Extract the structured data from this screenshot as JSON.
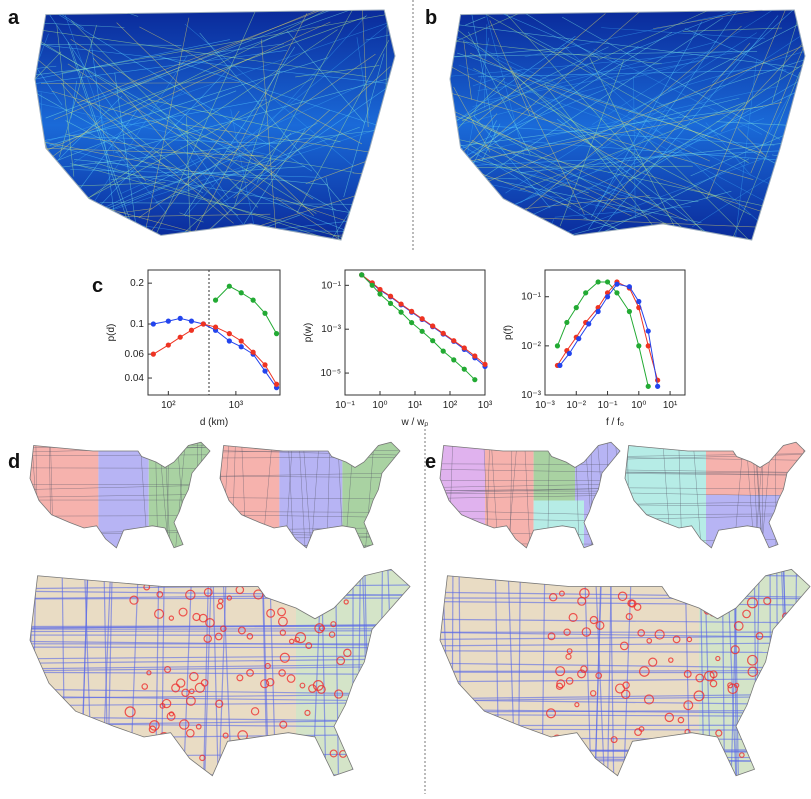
{
  "panels": [
    "a",
    "b",
    "c",
    "d",
    "e"
  ],
  "chart_data": [
    {
      "type": "line",
      "xlabel": "d (km)",
      "ylabel": "p(d)",
      "xscale": "log",
      "yscale": "log",
      "xlim": [
        50,
        4500
      ],
      "ylim": [
        0.03,
        0.25
      ],
      "xticks": [
        {
          "value": 100,
          "label": "10²"
        },
        {
          "value": 1000,
          "label": "10³"
        }
      ],
      "yticks": [
        0.04,
        0.06,
        0.1,
        0.2
      ],
      "reference_x": 400,
      "series": [
        {
          "color": "#2244ee",
          "x": [
            60,
            100,
            150,
            220,
            330,
            500,
            800,
            1200,
            1800,
            2700,
            4000
          ],
          "values": [
            0.1,
            0.105,
            0.11,
            0.105,
            0.1,
            0.09,
            0.075,
            0.068,
            0.06,
            0.045,
            0.034
          ]
        },
        {
          "color": "#ee3322",
          "x": [
            60,
            100,
            150,
            220,
            330,
            500,
            800,
            1200,
            1800,
            2700,
            4000
          ],
          "values": [
            0.06,
            0.07,
            0.08,
            0.09,
            0.1,
            0.095,
            0.085,
            0.075,
            0.062,
            0.05,
            0.036
          ]
        },
        {
          "color": "#22aa33",
          "x": [
            500,
            800,
            1200,
            1800,
            2700,
            4000
          ],
          "values": [
            0.15,
            0.19,
            0.17,
            0.15,
            0.12,
            0.085
          ]
        }
      ]
    },
    {
      "type": "line",
      "xlabel": "w / w₀",
      "ylabel": "p(w)",
      "xscale": "log",
      "yscale": "log",
      "xlim": [
        0.1,
        1000
      ],
      "ylim": [
        1e-06,
        0.5
      ],
      "xticks": [
        {
          "value": 0.1,
          "label": "10⁻¹"
        },
        {
          "value": 1,
          "label": "10⁰"
        },
        {
          "value": 10,
          "label": "10¹"
        },
        {
          "value": 100,
          "label": "10²"
        },
        {
          "value": 1000,
          "label": "10³"
        }
      ],
      "yticks": [
        {
          "value": 0.1,
          "label": "10⁻¹"
        },
        {
          "value": 0.001,
          "label": "10⁻³"
        },
        {
          "value": 1e-05,
          "label": "10⁻⁵"
        }
      ],
      "series": [
        {
          "color": "#2244ee",
          "x": [
            0.3,
            0.6,
            1,
            2,
            4,
            8,
            16,
            32,
            64,
            128,
            256,
            512,
            1000
          ],
          "values": [
            0.3,
            0.12,
            0.06,
            0.03,
            0.013,
            0.006,
            0.0028,
            0.0013,
            0.0006,
            0.00028,
            0.00012,
            5e-05,
            2e-05
          ]
        },
        {
          "color": "#ee3322",
          "x": [
            0.3,
            0.6,
            1,
            2,
            4,
            8,
            16,
            32,
            64,
            128,
            256,
            512,
            1000
          ],
          "values": [
            0.3,
            0.13,
            0.065,
            0.032,
            0.014,
            0.0065,
            0.003,
            0.0014,
            0.00065,
            0.0003,
            0.00014,
            6e-05,
            2.5e-05
          ]
        },
        {
          "color": "#22aa33",
          "x": [
            0.3,
            0.6,
            1,
            2,
            4,
            8,
            16,
            32,
            64,
            128,
            256,
            512
          ],
          "values": [
            0.3,
            0.1,
            0.04,
            0.015,
            0.006,
            0.002,
            0.0008,
            0.0003,
            0.0001,
            4e-05,
            1.5e-05,
            5e-06
          ]
        }
      ]
    },
    {
      "type": "line",
      "xlabel": "f / f₀",
      "ylabel": "p(f)",
      "xscale": "log",
      "yscale": "log",
      "xlim": [
        0.001,
        30
      ],
      "ylim": [
        0.001,
        0.35
      ],
      "xticks": [
        {
          "value": 0.001,
          "label": "10⁻³"
        },
        {
          "value": 0.01,
          "label": "10⁻²"
        },
        {
          "value": 0.1,
          "label": "10⁻¹"
        },
        {
          "value": 1,
          "label": "10⁰"
        },
        {
          "value": 10,
          "label": "10¹"
        }
      ],
      "yticks": [
        {
          "value": 0.001,
          "label": "10⁻³"
        },
        {
          "value": 0.01,
          "label": "10⁻²"
        },
        {
          "value": 0.1,
          "label": "10⁻¹"
        }
      ],
      "series": [
        {
          "color": "#22aa33",
          "x": [
            0.0025,
            0.005,
            0.01,
            0.02,
            0.05,
            0.1,
            0.2,
            0.5,
            1,
            2
          ],
          "values": [
            0.01,
            0.03,
            0.06,
            0.12,
            0.2,
            0.2,
            0.12,
            0.05,
            0.01,
            0.0015
          ]
        },
        {
          "color": "#ee3322",
          "x": [
            0.0025,
            0.005,
            0.01,
            0.02,
            0.05,
            0.1,
            0.2,
            0.5,
            1,
            2,
            4
          ],
          "values": [
            0.004,
            0.008,
            0.015,
            0.03,
            0.06,
            0.12,
            0.2,
            0.15,
            0.06,
            0.01,
            0.002
          ]
        },
        {
          "color": "#2244ee",
          "x": [
            0.003,
            0.006,
            0.012,
            0.025,
            0.05,
            0.1,
            0.2,
            0.5,
            1,
            2,
            4
          ],
          "values": [
            0.004,
            0.007,
            0.014,
            0.028,
            0.05,
            0.1,
            0.18,
            0.16,
            0.08,
            0.02,
            0.0015
          ]
        }
      ]
    }
  ]
}
